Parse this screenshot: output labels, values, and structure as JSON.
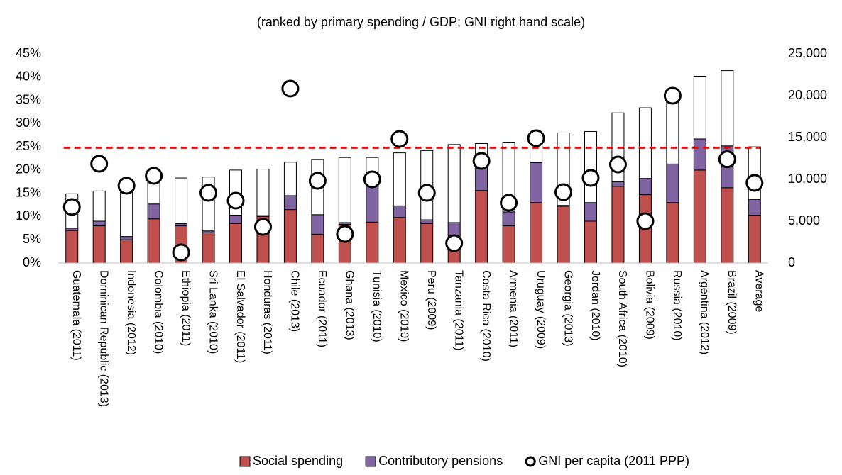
{
  "chart_data": {
    "type": "bar",
    "stacked": true,
    "subtitle": "(ranked by primary spending / GDP; GNI right hand scale)",
    "categories": [
      "Guatemala (2011)",
      "Dominican Republic (2013)",
      "Indonesia (2012)",
      "Colombia (2010)",
      "Ethiopia (2011)",
      "Sri Lanka (2010)",
      "El Salvador (2011)",
      "Honduras (2011)",
      "Chile (2013)",
      "Ecuador (2011)",
      "Ghana (2013)",
      "Tunisia (2010)",
      "Mexico (2010)",
      "Peru (2009)",
      "Tanzania (2011)",
      "Costa Rica (2010)",
      "Armenia (2011)",
      "Uruguay (2009)",
      "Georgia (2013)",
      "Jordan (2010)",
      "South Africa (2010)",
      "Bolivia (2009)",
      "Russia (2010)",
      "Argentina (2012)",
      "Brazil (2009)",
      "Average"
    ],
    "series": [
      {
        "name": "Social spending",
        "color": "#c0504d",
        "values": [
          7.0,
          8.0,
          5.0,
          9.5,
          8.0,
          6.5,
          8.5,
          10.0,
          11.5,
          6.2,
          8.3,
          8.8,
          9.8,
          8.5,
          6.0,
          15.6,
          8.0,
          13.0,
          12.2,
          9.0,
          16.5,
          14.7,
          13.0,
          20.0,
          16.2,
          10.3
        ]
      },
      {
        "name": "Contributory pensions",
        "color": "#8064a2",
        "values": [
          0.5,
          1.0,
          0.7,
          3.2,
          0.5,
          0.4,
          1.8,
          0.2,
          3.0,
          4.2,
          0.4,
          8.4,
          2.5,
          0.8,
          2.7,
          6.5,
          3.0,
          8.6,
          0.2,
          4.0,
          1.0,
          3.5,
          8.3,
          6.7,
          9.0,
          3.4
        ]
      },
      {
        "color": "#ffffff",
        "values": [
          7.4,
          6.5,
          10.8,
          5.5,
          9.8,
          11.6,
          9.7,
          10.0,
          7.2,
          11.9,
          14.0,
          5.5,
          11.4,
          14.9,
          16.8,
          3.6,
          15.0,
          3.9,
          15.6,
          15.3,
          14.8,
          15.2,
          15.2,
          13.5,
          16.2,
          11.3
        ]
      },
      {
        "name": "GNI per capita (2011 PPP)",
        "type": "scatter",
        "axis": "y2",
        "color": "#000000",
        "values": [
          6700,
          11860,
          9240,
          10420,
          1270,
          8390,
          7460,
          4320,
          20850,
          9830,
          3470,
          10000,
          14830,
          8390,
          2370,
          12200,
          7200,
          14920,
          8470,
          10170,
          11780,
          5000,
          20000,
          null,
          12400,
          9580
        ]
      }
    ],
    "reference_line": {
      "value": 24.8,
      "color": "#ff0000",
      "style": "dashed"
    },
    "ylim": [
      0,
      45
    ],
    "yticks": [
      {
        "value": 0,
        "label": "0%"
      },
      {
        "value": 5,
        "label": "5%"
      },
      {
        "value": 10,
        "label": "10%"
      },
      {
        "value": 15,
        "label": "15%"
      },
      {
        "value": 20,
        "label": "20%"
      },
      {
        "value": 25,
        "label": "25%"
      },
      {
        "value": 30,
        "label": "30%"
      },
      {
        "value": 35,
        "label": "35%"
      },
      {
        "value": 40,
        "label": "40%"
      },
      {
        "value": 45,
        "label": "45%"
      }
    ],
    "y2lim": [
      0,
      25000
    ],
    "y2ticks": [
      0,
      {
        "value": 5000,
        "label": "5,000"
      },
      {
        "value": 10000,
        "label": "10,000"
      },
      {
        "value": 15000,
        "label": "15,000"
      },
      {
        "value": 20000,
        "label": "20,000"
      },
      {
        "value": 25000,
        "label": "25,000"
      }
    ],
    "grid": false,
    "legend": "bottom"
  }
}
